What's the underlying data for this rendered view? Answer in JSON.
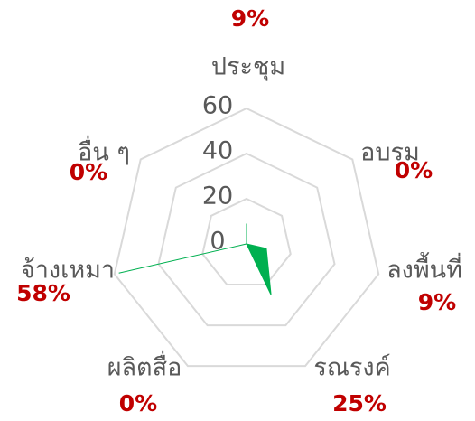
{
  "chart_data": {
    "type": "radar",
    "categories": [
      "ประชุม",
      "อบรม",
      "ลงพื้นที่",
      "รณรงค์",
      "ผลิตสื่อ",
      "จ้างเหมา",
      "อื่น ๆ"
    ],
    "values": [
      9,
      0,
      9,
      25,
      0,
      58,
      0
    ],
    "value_labels": [
      "9%",
      "0%",
      "9%",
      "25%",
      "0%",
      "58%",
      "0%"
    ],
    "color": "#00b050",
    "ylim": [
      0,
      60
    ],
    "yticks": [
      0,
      20,
      40,
      60
    ],
    "grid": true
  }
}
